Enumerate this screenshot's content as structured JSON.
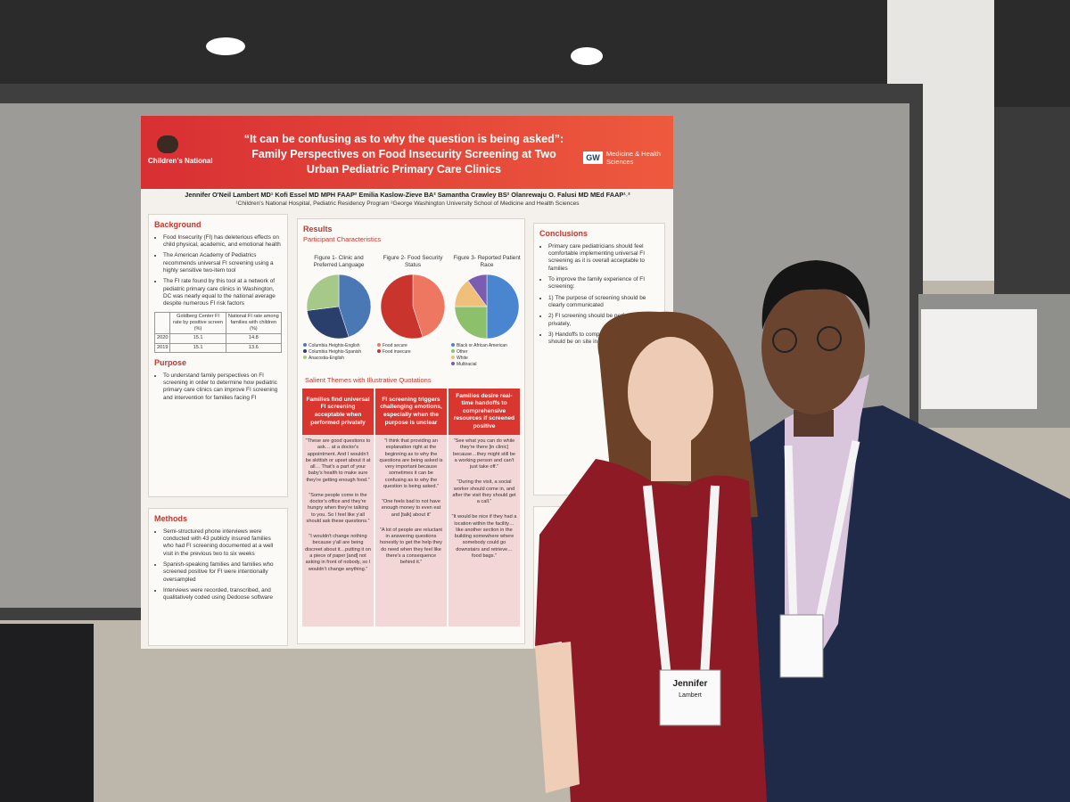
{
  "poster": {
    "header": {
      "org": "Children's National",
      "title": "“It can be confusing as to why the question is being asked”: Family Perspectives on Food Insecurity Screening at Two Urban Pediatric Primary Care Clinics",
      "partner_abbr": "GW",
      "partner": "Medicine & Health Sciences"
    },
    "authors": "Jennifer O'Neil Lambert MD¹ Kofi Essel MD MPH FAAP² Emilia Kaslow-Zieve BA² Samantha Crawley BS² Olanrewaju O. Falusi MD MEd FAAP¹˒²",
    "affiliations": "¹Children's National Hospital, Pediatric Residency Program  ²George Washington University School of Medicine and Health Sciences",
    "background": {
      "heading": "Background",
      "items": [
        "Food Insecurity (FI) has deleterious effects on child physical, academic, and emotional health",
        "The American Academy of Pediatrics recommends universal FI screening using a highly sensitive two-item tool",
        "The FI rate found by this tool at a network of pediatric primary care clinics in Washington, DC was nearly equal to the national average despite numerous FI risk factors"
      ]
    },
    "table": {
      "header": [
        "",
        "Goldberg Center FI rate by positive screen (%)",
        "National FI rate among families with children (%)"
      ],
      "rows": [
        [
          "2020",
          "15.1",
          "14.8"
        ],
        [
          "2019",
          "15.1",
          "13.6"
        ]
      ]
    },
    "purpose": {
      "heading": "Purpose",
      "items": [
        "To understand family perspectives on FI screening in order to determine how pediatric primary care clinics can improve FI screening and intervention for families facing FI"
      ]
    },
    "methods": {
      "heading": "Methods",
      "items": [
        "Semi-structured phone interviews were conducted with 43 publicly insured families who had FI screening documented at a well visit in the previous two to six weeks",
        "Spanish-speaking families and families who screened positive for FI were intentionally oversampled",
        "Interviews were recorded, transcribed, and qualitatively coded using Dedoose software"
      ]
    },
    "results": {
      "heading": "Results",
      "subheading": "Participant Characteristics",
      "figures": [
        {
          "title": "Figure 1- Clinic and Preferred Language",
          "slices": [
            {
              "label": "Columbia Heights-English",
              "value": 45,
              "color": "#4a78b5"
            },
            {
              "label": "Columbia Heights-Spanish",
              "value": 28,
              "color": "#2a3f6b"
            },
            {
              "label": "Anacostia-English",
              "value": 27,
              "color": "#a6c98a"
            }
          ]
        },
        {
          "title": "Figure 2- Food Security Status",
          "slices": [
            {
              "label": "Food secure",
              "value": 45,
              "color": "#ee7762"
            },
            {
              "label": "Food insecure",
              "value": 55,
              "color": "#c9342c"
            }
          ]
        },
        {
          "title": "Figure 3- Reported Patient Race",
          "slices": [
            {
              "label": "Black or African American",
              "value": 50,
              "color": "#4a86d0"
            },
            {
              "label": "Other",
              "value": 25,
              "color": "#8cc06b"
            },
            {
              "label": "White",
              "value": 15,
              "color": "#f0bf7a"
            },
            {
              "label": "Multiracial",
              "value": 10,
              "color": "#7a5cb0"
            }
          ]
        }
      ],
      "themes_heading": "Salient Themes with Illustrative Quotations",
      "themes": [
        {
          "heading": "Families find universal FI screening acceptable when performed privately",
          "quotes": [
            "“These are good questions to ask… at a doctor's appointment. And I wouldn't be skittish or upset about it at all… That's a part of your baby's health to make sure they're getting enough food.”",
            "“Some people come in the doctor's office and they're hungry when they're talking to you. So I feel like y'all should ask these questions.”",
            "“I wouldn't change nothing because y'all are being discreet about it…putting it on a piece of paper [and] not asking in front of nobody, so I wouldn't change anything.”"
          ]
        },
        {
          "heading": "FI screening triggers challenging emotions, especially when the purpose is unclear",
          "quotes": [
            "“I think that providing an explanation right at the beginning as to why the questions are being asked is very important because sometimes it can be confusing as to why the question is being asked.”",
            "“One feels bad to not have enough money to even eat and [talk] about it”",
            "“A lot of people are reluctant in answering questions honestly to get the help they do need when they feel like there's a consequence behind it.”"
          ]
        },
        {
          "heading": "Families desire real-time handoffs to comprehensive resources if screened positive",
          "quotes": [
            "“See what you can do while they're there [in clinic] because…they might still be a working person and can't just take off.”",
            "“During the visit, a social worker should come in, and after the visit they should get a call.”",
            "“It would be nice if they had a location within the facility… like another section in the building somewhere where somebody could go downstairs and retrieve…food bags.”"
          ]
        }
      ]
    },
    "conclusions": {
      "heading": "Conclusions",
      "items": [
        "Primary care pediatricians should feel comfortable implementing universal FI screening as it is overall acceptable to families",
        "To improve the family experience of FI screening:",
        "1) The purpose of screening should be clearly communicated",
        "2) FI screening should be performed privately,",
        "3) Handoffs to comprehensive resources should be on site in real time"
      ]
    }
  },
  "badges": [
    {
      "name": "Jennifer",
      "surname": "Lambert"
    }
  ]
}
